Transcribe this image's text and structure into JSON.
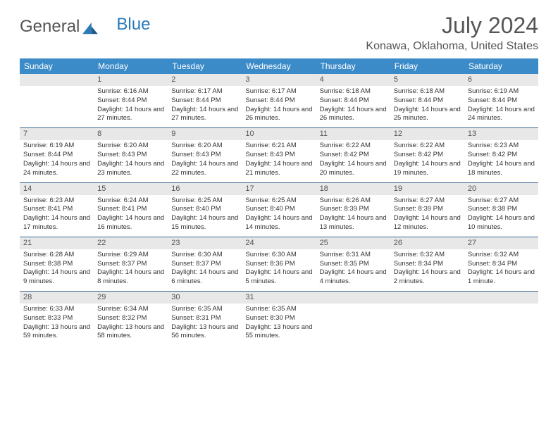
{
  "logo": {
    "text_a": "General",
    "text_b": "Blue"
  },
  "title": "July 2024",
  "location": "Konawa, Oklahoma, United States",
  "colors": {
    "header_bg": "#3b8bc9",
    "header_text": "#ffffff",
    "daynum_bg": "#e8e8e8",
    "rule": "#3b6a92",
    "title_color": "#555555"
  },
  "weekdays": [
    "Sunday",
    "Monday",
    "Tuesday",
    "Wednesday",
    "Thursday",
    "Friday",
    "Saturday"
  ],
  "weeks": [
    {
      "nums": [
        "",
        "1",
        "2",
        "3",
        "4",
        "5",
        "6"
      ],
      "details": [
        {
          "sunrise": "",
          "sunset": "",
          "daylight": ""
        },
        {
          "sunrise": "Sunrise: 6:16 AM",
          "sunset": "Sunset: 8:44 PM",
          "daylight": "Daylight: 14 hours and 27 minutes."
        },
        {
          "sunrise": "Sunrise: 6:17 AM",
          "sunset": "Sunset: 8:44 PM",
          "daylight": "Daylight: 14 hours and 27 minutes."
        },
        {
          "sunrise": "Sunrise: 6:17 AM",
          "sunset": "Sunset: 8:44 PM",
          "daylight": "Daylight: 14 hours and 26 minutes."
        },
        {
          "sunrise": "Sunrise: 6:18 AM",
          "sunset": "Sunset: 8:44 PM",
          "daylight": "Daylight: 14 hours and 26 minutes."
        },
        {
          "sunrise": "Sunrise: 6:18 AM",
          "sunset": "Sunset: 8:44 PM",
          "daylight": "Daylight: 14 hours and 25 minutes."
        },
        {
          "sunrise": "Sunrise: 6:19 AM",
          "sunset": "Sunset: 8:44 PM",
          "daylight": "Daylight: 14 hours and 24 minutes."
        }
      ]
    },
    {
      "nums": [
        "7",
        "8",
        "9",
        "10",
        "11",
        "12",
        "13"
      ],
      "details": [
        {
          "sunrise": "Sunrise: 6:19 AM",
          "sunset": "Sunset: 8:44 PM",
          "daylight": "Daylight: 14 hours and 24 minutes."
        },
        {
          "sunrise": "Sunrise: 6:20 AM",
          "sunset": "Sunset: 8:43 PM",
          "daylight": "Daylight: 14 hours and 23 minutes."
        },
        {
          "sunrise": "Sunrise: 6:20 AM",
          "sunset": "Sunset: 8:43 PM",
          "daylight": "Daylight: 14 hours and 22 minutes."
        },
        {
          "sunrise": "Sunrise: 6:21 AM",
          "sunset": "Sunset: 8:43 PM",
          "daylight": "Daylight: 14 hours and 21 minutes."
        },
        {
          "sunrise": "Sunrise: 6:22 AM",
          "sunset": "Sunset: 8:42 PM",
          "daylight": "Daylight: 14 hours and 20 minutes."
        },
        {
          "sunrise": "Sunrise: 6:22 AM",
          "sunset": "Sunset: 8:42 PM",
          "daylight": "Daylight: 14 hours and 19 minutes."
        },
        {
          "sunrise": "Sunrise: 6:23 AM",
          "sunset": "Sunset: 8:42 PM",
          "daylight": "Daylight: 14 hours and 18 minutes."
        }
      ]
    },
    {
      "nums": [
        "14",
        "15",
        "16",
        "17",
        "18",
        "19",
        "20"
      ],
      "details": [
        {
          "sunrise": "Sunrise: 6:23 AM",
          "sunset": "Sunset: 8:41 PM",
          "daylight": "Daylight: 14 hours and 17 minutes."
        },
        {
          "sunrise": "Sunrise: 6:24 AM",
          "sunset": "Sunset: 8:41 PM",
          "daylight": "Daylight: 14 hours and 16 minutes."
        },
        {
          "sunrise": "Sunrise: 6:25 AM",
          "sunset": "Sunset: 8:40 PM",
          "daylight": "Daylight: 14 hours and 15 minutes."
        },
        {
          "sunrise": "Sunrise: 6:25 AM",
          "sunset": "Sunset: 8:40 PM",
          "daylight": "Daylight: 14 hours and 14 minutes."
        },
        {
          "sunrise": "Sunrise: 6:26 AM",
          "sunset": "Sunset: 8:39 PM",
          "daylight": "Daylight: 14 hours and 13 minutes."
        },
        {
          "sunrise": "Sunrise: 6:27 AM",
          "sunset": "Sunset: 8:39 PM",
          "daylight": "Daylight: 14 hours and 12 minutes."
        },
        {
          "sunrise": "Sunrise: 6:27 AM",
          "sunset": "Sunset: 8:38 PM",
          "daylight": "Daylight: 14 hours and 10 minutes."
        }
      ]
    },
    {
      "nums": [
        "21",
        "22",
        "23",
        "24",
        "25",
        "26",
        "27"
      ],
      "details": [
        {
          "sunrise": "Sunrise: 6:28 AM",
          "sunset": "Sunset: 8:38 PM",
          "daylight": "Daylight: 14 hours and 9 minutes."
        },
        {
          "sunrise": "Sunrise: 6:29 AM",
          "sunset": "Sunset: 8:37 PM",
          "daylight": "Daylight: 14 hours and 8 minutes."
        },
        {
          "sunrise": "Sunrise: 6:30 AM",
          "sunset": "Sunset: 8:37 PM",
          "daylight": "Daylight: 14 hours and 6 minutes."
        },
        {
          "sunrise": "Sunrise: 6:30 AM",
          "sunset": "Sunset: 8:36 PM",
          "daylight": "Daylight: 14 hours and 5 minutes."
        },
        {
          "sunrise": "Sunrise: 6:31 AM",
          "sunset": "Sunset: 8:35 PM",
          "daylight": "Daylight: 14 hours and 4 minutes."
        },
        {
          "sunrise": "Sunrise: 6:32 AM",
          "sunset": "Sunset: 8:34 PM",
          "daylight": "Daylight: 14 hours and 2 minutes."
        },
        {
          "sunrise": "Sunrise: 6:32 AM",
          "sunset": "Sunset: 8:34 PM",
          "daylight": "Daylight: 14 hours and 1 minute."
        }
      ]
    },
    {
      "nums": [
        "28",
        "29",
        "30",
        "31",
        "",
        "",
        ""
      ],
      "details": [
        {
          "sunrise": "Sunrise: 6:33 AM",
          "sunset": "Sunset: 8:33 PM",
          "daylight": "Daylight: 13 hours and 59 minutes."
        },
        {
          "sunrise": "Sunrise: 6:34 AM",
          "sunset": "Sunset: 8:32 PM",
          "daylight": "Daylight: 13 hours and 58 minutes."
        },
        {
          "sunrise": "Sunrise: 6:35 AM",
          "sunset": "Sunset: 8:31 PM",
          "daylight": "Daylight: 13 hours and 56 minutes."
        },
        {
          "sunrise": "Sunrise: 6:35 AM",
          "sunset": "Sunset: 8:30 PM",
          "daylight": "Daylight: 13 hours and 55 minutes."
        },
        {
          "sunrise": "",
          "sunset": "",
          "daylight": ""
        },
        {
          "sunrise": "",
          "sunset": "",
          "daylight": ""
        },
        {
          "sunrise": "",
          "sunset": "",
          "daylight": ""
        }
      ]
    }
  ]
}
